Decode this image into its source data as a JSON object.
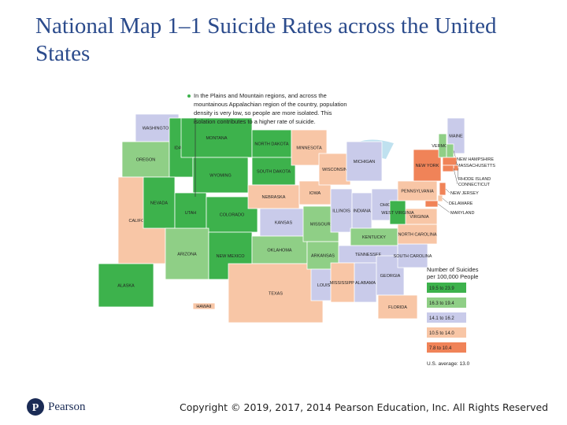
{
  "title": "National Map 1–1 Suicide Rates across the United States",
  "map": {
    "annotation": "In the Plains and Mountain regions, and across the mountainous Appalachian region of the country, population density is very low, so people are more isolated. This isolation contributes to a higher rate of suicide.",
    "states": [
      {
        "label": "WASHINGTON",
        "color": "#c9cbea"
      },
      {
        "label": "OREGON",
        "color": "#8fcf86"
      },
      {
        "label": "CALIFORNIA",
        "color": "#f8c6a6"
      },
      {
        "label": "IDAHO",
        "color": "#3db24c"
      },
      {
        "label": "NEVADA",
        "color": "#3db24c"
      },
      {
        "label": "MONTANA",
        "color": "#3db24c"
      },
      {
        "label": "WYOMING",
        "color": "#3db24c"
      },
      {
        "label": "UTAH",
        "color": "#3db24c"
      },
      {
        "label": "COLORADO",
        "color": "#3db24c"
      },
      {
        "label": "ARIZONA",
        "color": "#8fcf86"
      },
      {
        "label": "NEW MEXICO",
        "color": "#3db24c"
      },
      {
        "label": "NORTH DAKOTA",
        "color": "#3db24c"
      },
      {
        "label": "SOUTH DAKOTA",
        "color": "#3db24c"
      },
      {
        "label": "NEBRASKA",
        "color": "#f8c6a6"
      },
      {
        "label": "KANSAS",
        "color": "#c9cbea"
      },
      {
        "label": "OKLAHOMA",
        "color": "#8fcf86"
      },
      {
        "label": "TEXAS",
        "color": "#f8c6a6"
      },
      {
        "label": "MINNESOTA",
        "color": "#f8c6a6"
      },
      {
        "label": "IOWA",
        "color": "#f8c6a6"
      },
      {
        "label": "MISSOURI",
        "color": "#8fcf86"
      },
      {
        "label": "ARKANSAS",
        "color": "#8fcf86"
      },
      {
        "label": "LOUISIANA",
        "color": "#c9cbea"
      },
      {
        "label": "WISCONSIN",
        "color": "#f8c6a6"
      },
      {
        "label": "ILLINOIS",
        "color": "#c9cbea"
      },
      {
        "label": "MICHIGAN",
        "color": "#c9cbea"
      },
      {
        "label": "INDIANA",
        "color": "#c9cbea"
      },
      {
        "label": "OHIO",
        "color": "#c9cbea"
      },
      {
        "label": "KENTUCKY",
        "color": "#8fcf86"
      },
      {
        "label": "TENNESSEE",
        "color": "#c9cbea"
      },
      {
        "label": "MISSISSIPPI",
        "color": "#f8c6a6"
      },
      {
        "label": "ALABAMA",
        "color": "#c9cbea"
      },
      {
        "label": "GEORGIA",
        "color": "#c9cbea"
      },
      {
        "label": "FLORIDA",
        "color": "#f8c6a6"
      },
      {
        "label": "SOUTH CAROLINA",
        "color": "#c9cbea"
      },
      {
        "label": "NORTH CAROLINA",
        "color": "#f8c6a6"
      },
      {
        "label": "VIRGINIA",
        "color": "#f8c6a6"
      },
      {
        "label": "WEST VIRGINIA",
        "color": "#3db24c"
      },
      {
        "label": "PENNSYLVANIA",
        "color": "#f8c6a6"
      },
      {
        "label": "NEW YORK",
        "color": "#f08358"
      },
      {
        "label": "VERMONT",
        "color": "#8fcf86"
      },
      {
        "label": "MAINE",
        "color": "#c9cbea"
      },
      {
        "label": "NEW HAMPSHIRE",
        "color": "#8fcf86"
      },
      {
        "label": "MASSACHUSETTS",
        "color": "#f08358"
      },
      {
        "label": "RHODE ISLAND",
        "color": "#f08358"
      },
      {
        "label": "CONNECTICUT",
        "color": "#f08358"
      },
      {
        "label": "NEW JERSEY",
        "color": "#f08358"
      },
      {
        "label": "DELAWARE",
        "color": "#f8c6a6"
      },
      {
        "label": "MARYLAND",
        "color": "#f08358"
      },
      {
        "label": "ALASKA",
        "color": "#3db24c"
      },
      {
        "label": "HAWAII",
        "color": "#f8c6a6"
      }
    ],
    "legend": {
      "title": "Number of Suicides per 100,000 People",
      "items": [
        {
          "label": "19.5 to 23.9",
          "color": "#3db24c"
        },
        {
          "label": "16.3 to 19.4",
          "color": "#8fcf86"
        },
        {
          "label": "14.1 to 16.2",
          "color": "#c9cbea"
        },
        {
          "label": "10.5 to 14.0",
          "color": "#f8c6a6"
        },
        {
          "label": "7.8 to 10.4",
          "color": "#f08358"
        }
      ],
      "note": "U.S. average: 13.0"
    }
  },
  "footer": {
    "logo": "Pearson",
    "copyright": "Copyright © 2019, 2017, 2014 Pearson Education, Inc. All Rights Reserved"
  }
}
